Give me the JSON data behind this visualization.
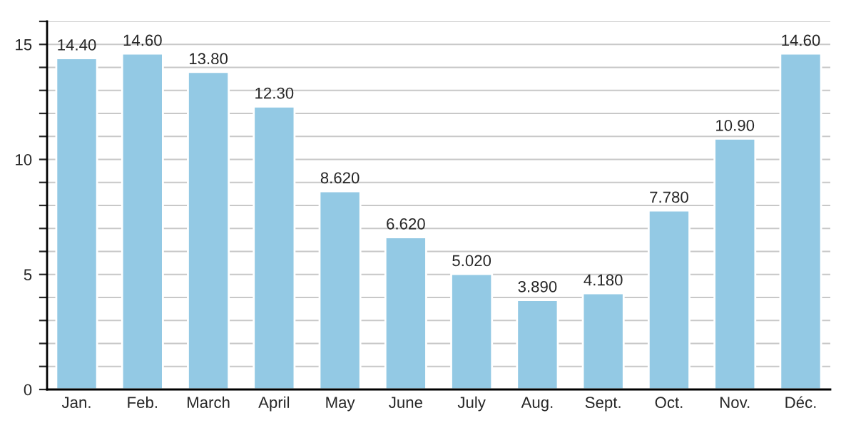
{
  "chart_data": {
    "type": "bar",
    "categories": [
      "Jan.",
      "Feb.",
      "March",
      "April",
      "May",
      "June",
      "July",
      "Aug.",
      "Sept.",
      "Oct.",
      "Nov.",
      "Déc."
    ],
    "values": [
      14.4,
      14.6,
      13.8,
      12.3,
      8.62,
      6.62,
      5.02,
      3.89,
      4.18,
      7.78,
      10.9,
      14.6
    ],
    "value_labels": [
      "14.40",
      "14.60",
      "13.80",
      "12.30",
      "8.620",
      "6.620",
      "5.020",
      "3.890",
      "4.180",
      "7.780",
      "10.90",
      "14.60"
    ],
    "color": "#93c9e4",
    "ylim": [
      0,
      16
    ],
    "yticks": [
      0,
      {
        "value": 1,
        "label": null
      },
      {
        "value": 2,
        "label": null
      },
      {
        "value": 3,
        "label": null
      },
      {
        "value": 4,
        "label": null
      },
      5,
      {
        "value": 6,
        "label": null
      },
      {
        "value": 7,
        "label": null
      },
      {
        "value": 8,
        "label": null
      },
      {
        "value": 9,
        "label": null
      },
      10,
      {
        "value": 11,
        "label": null
      },
      {
        "value": 12,
        "label": null
      },
      {
        "value": 13,
        "label": null
      },
      {
        "value": 14,
        "label": null
      },
      15,
      {
        "value": 16,
        "label": null
      }
    ],
    "grid": "y"
  }
}
